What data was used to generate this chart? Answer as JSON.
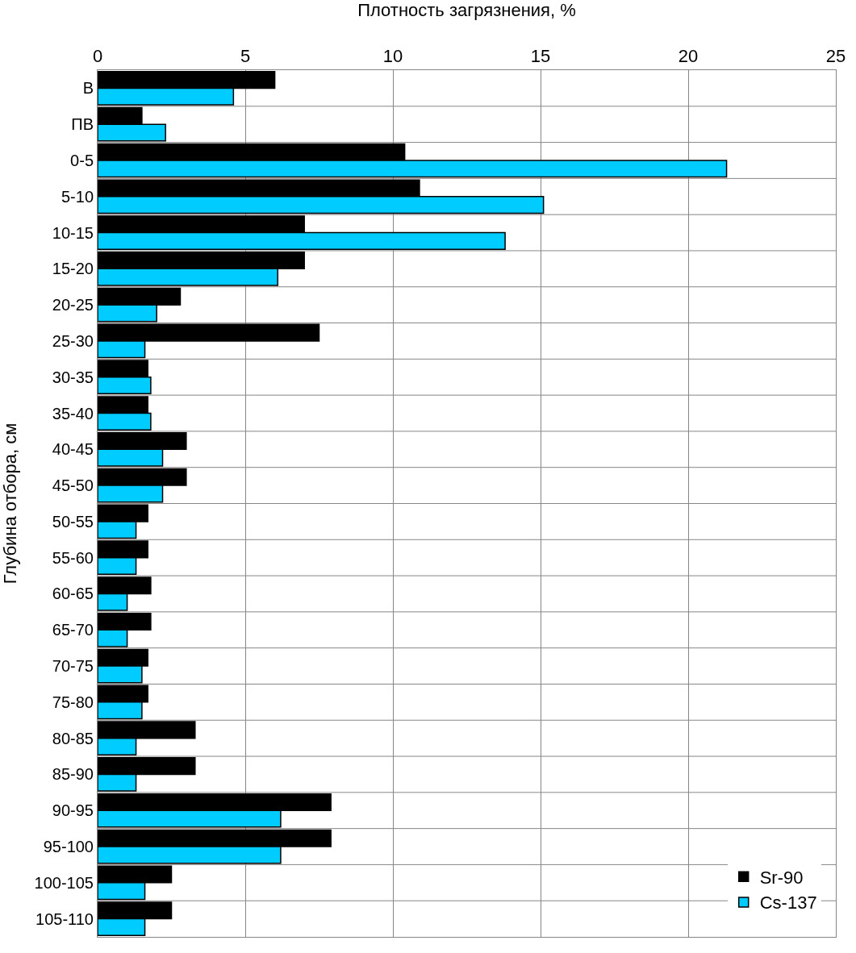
{
  "chart_data": {
    "type": "bar",
    "orientation": "horizontal",
    "xlabel": "Плотность загрязнения, %",
    "ylabel": "Глубина отбора, см",
    "categories": [
      "В",
      "ПВ",
      "0-5",
      "5-10",
      "10-15",
      "15-20",
      "20-25",
      "25-30",
      "30-35",
      "35-40",
      "40-45",
      "45-50",
      "50-55",
      "55-60",
      "60-65",
      "65-70",
      "70-75",
      "75-80",
      "80-85",
      "85-90",
      "90-95",
      "95-100",
      "100-105",
      "105-110"
    ],
    "series": [
      {
        "name": "Sr-90",
        "color": "#000000",
        "values": [
          6.0,
          1.5,
          10.4,
          10.9,
          7.0,
          7.0,
          2.8,
          7.5,
          1.7,
          1.7,
          3.0,
          3.0,
          1.7,
          1.7,
          1.8,
          1.8,
          1.7,
          1.7,
          3.3,
          3.3,
          7.9,
          7.9,
          2.5,
          2.5
        ]
      },
      {
        "name": "Cs-137",
        "color": "#00ccff",
        "values": [
          4.6,
          2.3,
          21.3,
          15.1,
          13.8,
          6.1,
          2.0,
          1.6,
          1.8,
          1.8,
          2.2,
          2.2,
          1.3,
          1.3,
          1.0,
          1.0,
          1.5,
          1.5,
          1.3,
          1.3,
          6.2,
          6.2,
          1.6,
          1.6
        ]
      }
    ],
    "xlim": [
      0,
      25
    ],
    "xticks": [
      0,
      5,
      10,
      15,
      20,
      25
    ],
    "grid": true,
    "legend": "bottom right"
  }
}
